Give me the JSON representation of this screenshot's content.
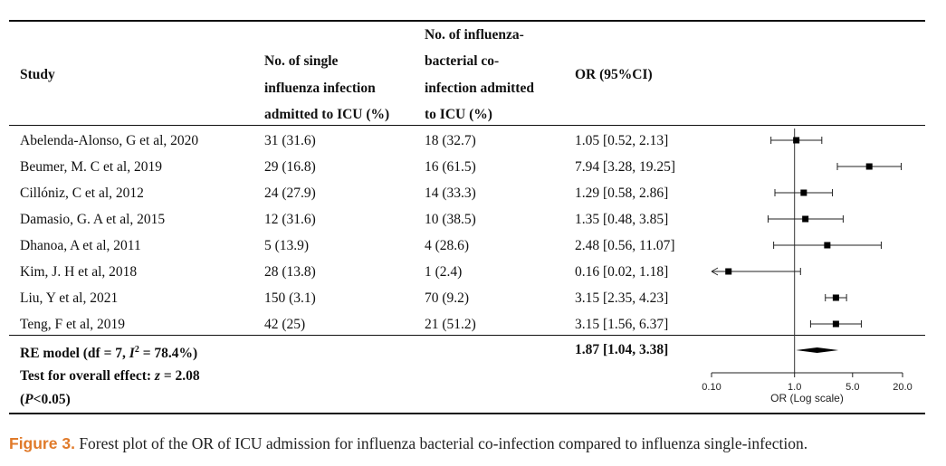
{
  "headers": {
    "study": "Study",
    "single": [
      "No. of single",
      "influenza infection",
      "admitted to ICU (%)"
    ],
    "coinf": [
      "No. of influenza-",
      "bacterial co-",
      "infection admitted",
      "to ICU (%)"
    ],
    "or": "OR (95%CI)"
  },
  "rows": [
    {
      "study": "Abelenda-Alonso, G et al, 2020",
      "single": "31 (31.6)",
      "coinf": "18 (32.7)",
      "or_text": "1.05 [0.52, 2.13]"
    },
    {
      "study": "Beumer, M. C et al, 2019",
      "single": "29 (16.8)",
      "coinf": "16 (61.5)",
      "or_text": "7.94 [3.28, 19.25]"
    },
    {
      "study": "Cillóniz, C et al, 2012",
      "single": "24 (27.9)",
      "coinf": "14 (33.3)",
      "or_text": "1.29 [0.58, 2.86]"
    },
    {
      "study": "Damasio, G. A et al, 2015",
      "single": "12 (31.6)",
      "coinf": "10 (38.5)",
      "or_text": "1.35 [0.48, 3.85]"
    },
    {
      "study": "Dhanoa, A et al, 2011",
      "single": "5 (13.9)",
      "coinf": "4 (28.6)",
      "or_text": "2.48 [0.56, 11.07]"
    },
    {
      "study": "Kim, J. H et al, 2018",
      "single": "28 (13.8)",
      "coinf": "1 (2.4)",
      "or_text": "0.16 [0.02, 1.18]"
    },
    {
      "study": "Liu, Y et al, 2021",
      "single": "150 (3.1)",
      "coinf": "70 (9.2)",
      "or_text": "3.15 [2.35, 4.23]"
    },
    {
      "study": "Teng, F et al, 2019",
      "single": "42 (25)",
      "coinf": "21 (51.2)",
      "or_text": "3.15 [1.56, 6.37]"
    }
  ],
  "summary": {
    "model_pre": "RE model (df = 7, ",
    "model_i": "I",
    "model_sup": "2",
    "model_post": " = 78.4%)",
    "or_text": "1.87 [1.04, 3.38]",
    "test_pre": "Test for overall effect: ",
    "test_z": "z",
    "test_post": " = 2.08",
    "p_open": "(",
    "p_italic": "P",
    "p_post": "<0.05)"
  },
  "caption": {
    "label": "Figure 3.",
    "text": " Forest plot of the OR of ICU admission for influenza bacterial co-infection compared to influenza single-infection."
  },
  "chart_data": {
    "type": "forest",
    "xscale": "log",
    "xlabel": "OR (Log scale)",
    "xlim": [
      0.1,
      20.0
    ],
    "xticks": [
      0.1,
      1.0,
      5.0,
      20.0
    ],
    "xtick_labels": [
      "0.10",
      "1.0",
      "5.0",
      "20.0"
    ],
    "reference_line": 1.0,
    "studies": [
      {
        "name": "Abelenda-Alonso, G et al, 2020",
        "or": 1.05,
        "lower": 0.52,
        "upper": 2.13
      },
      {
        "name": "Beumer, M. C et al, 2019",
        "or": 7.94,
        "lower": 3.28,
        "upper": 19.25
      },
      {
        "name": "Cillóniz, C et al, 2012",
        "or": 1.29,
        "lower": 0.58,
        "upper": 2.86
      },
      {
        "name": "Damasio, G. A et al, 2015",
        "or": 1.35,
        "lower": 0.48,
        "upper": 3.85
      },
      {
        "name": "Dhanoa, A et al, 2011",
        "or": 2.48,
        "lower": 0.56,
        "upper": 11.07
      },
      {
        "name": "Kim, J. H et al, 2018",
        "or": 0.16,
        "lower": 0.02,
        "upper": 1.18
      },
      {
        "name": "Liu, Y et al, 2021",
        "or": 3.15,
        "lower": 2.35,
        "upper": 4.23
      },
      {
        "name": "Teng, F et al, 2019",
        "or": 3.15,
        "lower": 1.56,
        "upper": 6.37
      }
    ],
    "pooled": {
      "name": "RE model",
      "or": 1.87,
      "lower": 1.04,
      "upper": 3.38
    }
  }
}
